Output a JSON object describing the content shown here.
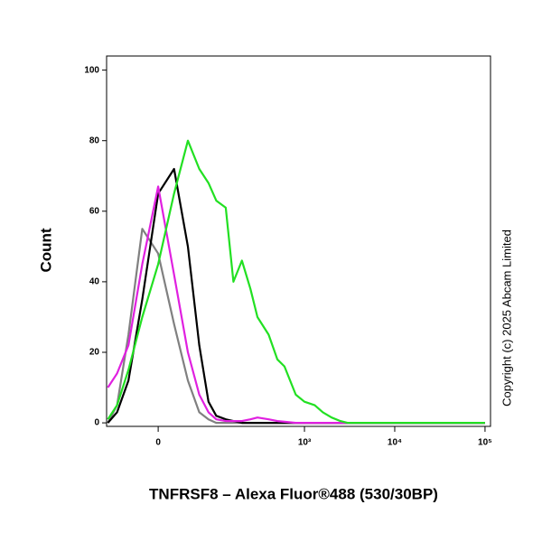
{
  "chart_data": {
    "type": "line",
    "x_label": "TNFRSF8 – Alexa Fluor®488 (530/30BP)",
    "y_label": "Count",
    "annotation": "Copyright (c) 2025 Abcam Limited",
    "x_scale": "biexponential",
    "x": [
      -80,
      -60,
      -40,
      -20,
      0,
      20,
      40,
      60,
      80,
      100,
      130,
      160,
      200,
      250,
      300,
      400,
      500,
      600,
      800,
      1000,
      1300,
      1600,
      2000,
      2500,
      3000,
      5000,
      10000,
      100000
    ],
    "series": [
      {
        "color": "#808080",
        "values": [
          0,
          5,
          25,
          55,
          48,
          28,
          12,
          3,
          1,
          0,
          0,
          0,
          0,
          0,
          0,
          0,
          0,
          0,
          0,
          0,
          0,
          0,
          0,
          0,
          0,
          0,
          0,
          0
        ]
      },
      {
        "color": "#000000",
        "values": [
          0,
          3,
          12,
          35,
          65,
          72,
          50,
          22,
          6,
          2,
          1,
          0.5,
          0,
          0,
          0,
          0,
          0,
          0,
          0,
          0,
          0,
          0,
          0,
          0,
          0,
          0,
          0,
          0
        ]
      },
      {
        "color": "#e020e0",
        "values": [
          10,
          14,
          22,
          45,
          67,
          42,
          20,
          8,
          3,
          1,
          0.5,
          0.5,
          0.5,
          1,
          1.5,
          1,
          0.5,
          0.3,
          0,
          0,
          0,
          0,
          0,
          0,
          0,
          0,
          0,
          0
        ]
      },
      {
        "color": "#22e022",
        "values": [
          1,
          5,
          15,
          30,
          45,
          65,
          80,
          72,
          68,
          63,
          61,
          40,
          46,
          38,
          30,
          25,
          18,
          16,
          8,
          6,
          5,
          3,
          1.5,
          0.5,
          0,
          0,
          0,
          0
        ]
      }
    ],
    "xlim": [
      -83,
      115000
    ],
    "xticks": [
      0,
      {
        "value": 1000,
        "label": "10³"
      },
      {
        "value": 10000,
        "label": "10⁴"
      },
      {
        "value": 100000,
        "label": "10⁵"
      }
    ],
    "ylim": [
      -1,
      104
    ],
    "yticks": [
      0,
      20,
      40,
      60,
      80,
      100
    ],
    "grid": false
  }
}
